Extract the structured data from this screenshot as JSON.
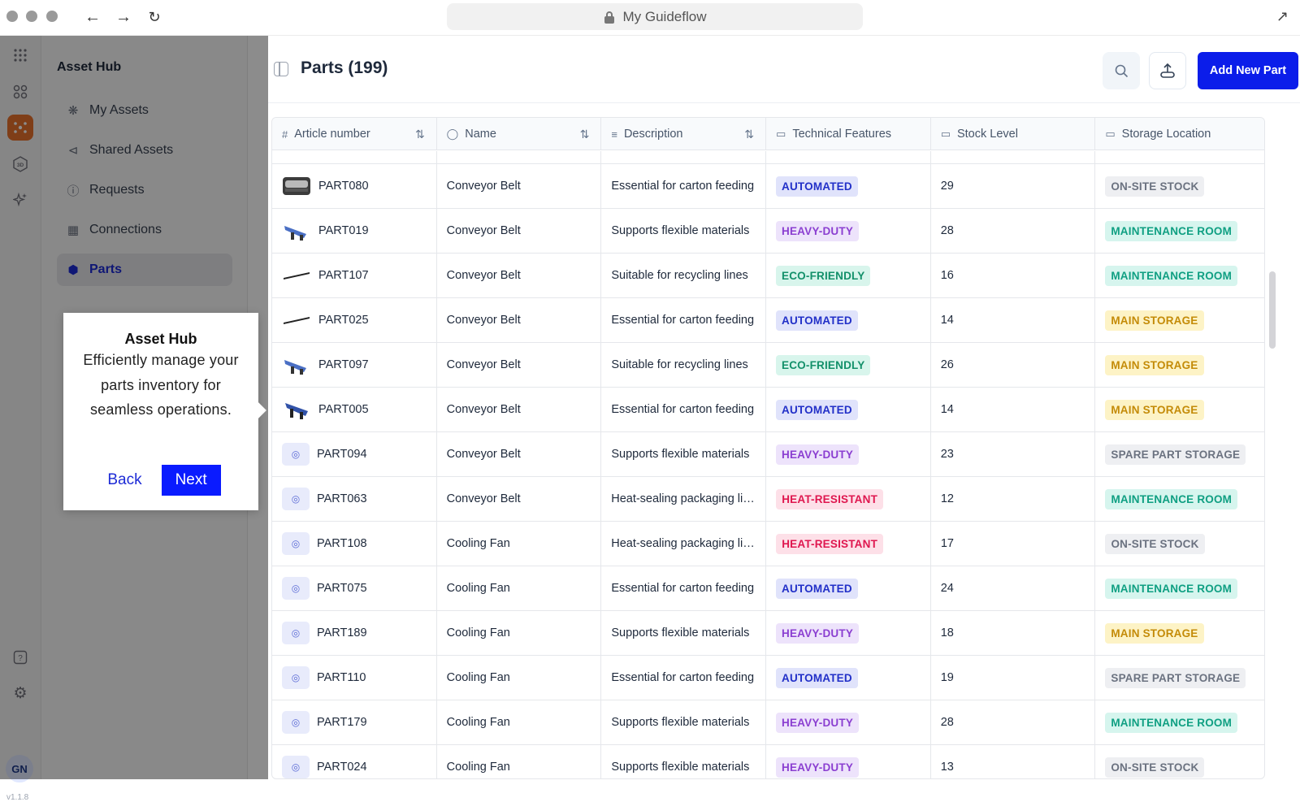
{
  "browser": {
    "url_title": "My Guideflow"
  },
  "sidebar": {
    "title": "Asset Hub",
    "items": [
      {
        "label": "My Assets"
      },
      {
        "label": "Shared Assets"
      },
      {
        "label": "Requests"
      },
      {
        "label": "Connections"
      },
      {
        "label": "Parts"
      }
    ],
    "user_initials": "GN",
    "version": "v1.1.8"
  },
  "tooltip": {
    "title": "Asset Hub",
    "body": "Efficiently manage your parts inventory for seamless operations.",
    "back_label": "Back",
    "next_label": "Next"
  },
  "header": {
    "title": "Parts (199)",
    "add_label": "Add New Part"
  },
  "table": {
    "columns": [
      "Article number",
      "Name",
      "Description",
      "Technical Features",
      "Stock Level",
      "Storage Location"
    ],
    "rows": [
      {
        "id": "PART080",
        "name": "Conveyor Belt",
        "desc": "Essential for carton feeding",
        "feature": "AUTOMATED",
        "stock": "29",
        "location": "ON-SITE STOCK"
      },
      {
        "id": "PART019",
        "name": "Conveyor Belt",
        "desc": "Supports flexible materials",
        "feature": "HEAVY-DUTY",
        "stock": "28",
        "location": "MAINTENANCE ROOM"
      },
      {
        "id": "PART107",
        "name": "Conveyor Belt",
        "desc": "Suitable for recycling lines",
        "feature": "ECO-FRIENDLY",
        "stock": "16",
        "location": "MAINTENANCE ROOM"
      },
      {
        "id": "PART025",
        "name": "Conveyor Belt",
        "desc": "Essential for carton feeding",
        "feature": "AUTOMATED",
        "stock": "14",
        "location": "MAIN STORAGE"
      },
      {
        "id": "PART097",
        "name": "Conveyor Belt",
        "desc": "Suitable for recycling lines",
        "feature": "ECO-FRIENDLY",
        "stock": "26",
        "location": "MAIN STORAGE"
      },
      {
        "id": "PART005",
        "name": "Conveyor Belt",
        "desc": "Essential for carton feeding",
        "feature": "AUTOMATED",
        "stock": "14",
        "location": "MAIN STORAGE"
      },
      {
        "id": "PART094",
        "name": "Conveyor Belt",
        "desc": "Supports flexible materials",
        "feature": "HEAVY-DUTY",
        "stock": "23",
        "location": "SPARE PART STORAGE"
      },
      {
        "id": "PART063",
        "name": "Conveyor Belt",
        "desc": "Heat-sealing packaging lin...",
        "feature": "HEAT-RESISTANT",
        "stock": "12",
        "location": "MAINTENANCE ROOM"
      },
      {
        "id": "PART108",
        "name": "Cooling Fan",
        "desc": "Heat-sealing packaging lin...",
        "feature": "HEAT-RESISTANT",
        "stock": "17",
        "location": "ON-SITE STOCK"
      },
      {
        "id": "PART075",
        "name": "Cooling Fan",
        "desc": "Essential for carton feeding",
        "feature": "AUTOMATED",
        "stock": "24",
        "location": "MAINTENANCE ROOM"
      },
      {
        "id": "PART189",
        "name": "Cooling Fan",
        "desc": "Supports flexible materials",
        "feature": "HEAVY-DUTY",
        "stock": "18",
        "location": "MAIN STORAGE"
      },
      {
        "id": "PART110",
        "name": "Cooling Fan",
        "desc": "Essential for carton feeding",
        "feature": "AUTOMATED",
        "stock": "19",
        "location": "SPARE PART STORAGE"
      },
      {
        "id": "PART179",
        "name": "Cooling Fan",
        "desc": "Supports flexible materials",
        "feature": "HEAVY-DUTY",
        "stock": "28",
        "location": "MAINTENANCE ROOM"
      },
      {
        "id": "PART024",
        "name": "Cooling Fan",
        "desc": "Supports flexible materials",
        "feature": "HEAVY-DUTY",
        "stock": "13",
        "location": "ON-SITE STOCK"
      }
    ]
  }
}
